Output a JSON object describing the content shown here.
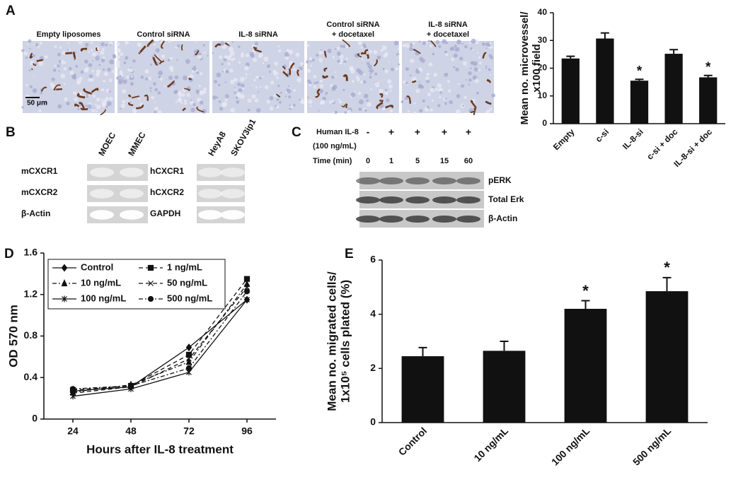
{
  "micrographs": {
    "letter": "A",
    "labels": [
      [
        "Empty liposomes"
      ],
      [
        "Control siRNA"
      ],
      [
        "IL-8 siRNA"
      ],
      [
        "Control siRNA",
        "+ docetaxel"
      ],
      [
        "IL-8 siRNA",
        "+ docetaxel"
      ]
    ],
    "scale_bar": "50 μm"
  },
  "blot_b": {
    "letter": "B",
    "lanes_left": [
      "MOEC",
      "MMEC"
    ],
    "rows_left": [
      "mCXCR1",
      "mCXCR2",
      "β-Actin"
    ],
    "lanes_right": [
      "HeyA8",
      "SKOV3ip1"
    ],
    "rows_right": [
      "hCXCR1",
      "hCXCR2",
      "GAPDH"
    ]
  },
  "blot_c": {
    "letter": "C",
    "treatment_label": "Human IL-8",
    "dose": "(100 ng/mL)",
    "treatment": [
      "-",
      "+",
      "+",
      "+",
      "+"
    ],
    "time_label": "Time (min)",
    "times": [
      "0",
      "1",
      "5",
      "15",
      "60"
    ],
    "rows": [
      "pERK",
      "Total Erk",
      "β-Actin"
    ]
  },
  "chart_data": [
    {
      "type": "bar",
      "y_label": [
        "Mean no. microvessel/",
        "x100 field"
      ],
      "categories": [
        "Empty",
        "c-si",
        "IL-8-si",
        "c-si + doc",
        "IL-8-si + doc"
      ],
      "values": [
        23.5,
        30.7,
        15.5,
        25.2,
        16.7
      ],
      "errors": [
        0.8,
        2.0,
        0.5,
        1.5,
        0.7
      ],
      "significance": [
        null,
        null,
        "*",
        null,
        "*"
      ],
      "color": "#111111",
      "ylim": [
        0,
        40
      ],
      "yticks": [
        0,
        10,
        20,
        30,
        40
      ]
    },
    {
      "type": "line",
      "letter": "D",
      "x_label": "Hours after IL-8 treatment",
      "y_label": "OD 570 nm",
      "x": [
        24,
        48,
        72,
        96
      ],
      "xlim": [
        12,
        108
      ],
      "xticks": [
        24,
        48,
        72,
        96
      ],
      "ylim": [
        0,
        1.6
      ],
      "yticks": [
        0,
        0.4,
        0.8,
        1.2,
        1.6
      ],
      "legend": "upper left",
      "series": [
        {
          "name": "Control",
          "color": "#111111",
          "dash": "solid",
          "marker": "diamond",
          "values": [
            0.27,
            0.31,
            0.69,
            1.15
          ]
        },
        {
          "name": "1 ng/mL",
          "color": "#111111",
          "dash": "dash",
          "marker": "square",
          "values": [
            0.28,
            0.32,
            0.62,
            1.35
          ]
        },
        {
          "name": "10 ng/mL",
          "color": "#111111",
          "dash": "dashdot",
          "marker": "triangle",
          "values": [
            0.26,
            0.33,
            0.55,
            1.3
          ]
        },
        {
          "name": "50 ng/mL",
          "color": "#111111",
          "dash": "dash",
          "marker": "x",
          "values": [
            0.25,
            0.31,
            0.58,
            1.27
          ]
        },
        {
          "name": "100 ng/mL",
          "color": "#111111",
          "dash": "solid",
          "marker": "star",
          "values": [
            0.22,
            0.29,
            0.45,
            1.15
          ]
        },
        {
          "name": "500 ng/mL",
          "color": "#111111",
          "dash": "dashdot",
          "marker": "circle",
          "values": [
            0.29,
            0.32,
            0.49,
            1.23
          ]
        }
      ]
    },
    {
      "type": "bar",
      "letter": "E",
      "y_label": [
        "Mean no. migrated cells/",
        "1x10⁵ cells plated (%)"
      ],
      "categories": [
        "Control",
        "10 ng/mL",
        "100 ng/mL",
        "500 ng/mL"
      ],
      "values": [
        2.45,
        2.65,
        4.2,
        4.85
      ],
      "errors": [
        0.32,
        0.35,
        0.3,
        0.5
      ],
      "significance": [
        null,
        null,
        "*",
        "*"
      ],
      "color": "#111111",
      "ylim": [
        0,
        6
      ],
      "yticks": [
        0,
        2,
        4,
        6
      ]
    }
  ]
}
